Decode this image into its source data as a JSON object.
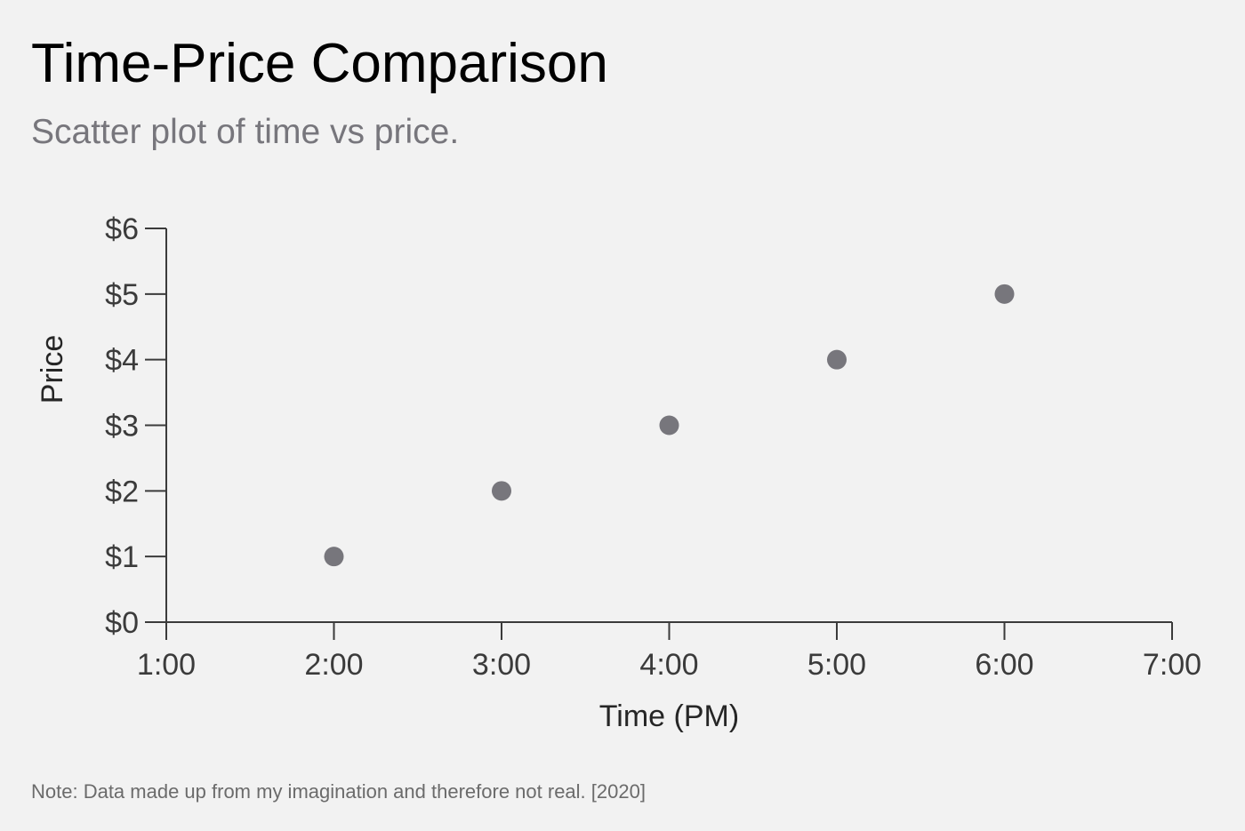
{
  "header": {
    "title": "Time-Price Comparison",
    "subtitle": "Scatter plot of time vs price."
  },
  "footer": {
    "note": "Note: Data made up from my imagination and therefore not real. [2020]"
  },
  "chart_data": {
    "type": "scatter",
    "title": "Time-Price Comparison",
    "subtitle": "Scatter plot of time vs price.",
    "xlabel": "Time (PM)",
    "ylabel": "Price",
    "x_ticks": [
      "1:00",
      "2:00",
      "3:00",
      "4:00",
      "5:00",
      "6:00",
      "7:00"
    ],
    "y_ticks": [
      "$0",
      "$1",
      "$2",
      "$3",
      "$4",
      "$5",
      "$6"
    ],
    "xlim": [
      1,
      7
    ],
    "ylim": [
      0,
      6
    ],
    "grid": false,
    "point_color": "#77767c",
    "axis_color": "#3b3b3b",
    "points": [
      {
        "x": 2,
        "y": 1
      },
      {
        "x": 3,
        "y": 2
      },
      {
        "x": 4,
        "y": 3
      },
      {
        "x": 5,
        "y": 4
      },
      {
        "x": 6,
        "y": 5
      }
    ]
  }
}
